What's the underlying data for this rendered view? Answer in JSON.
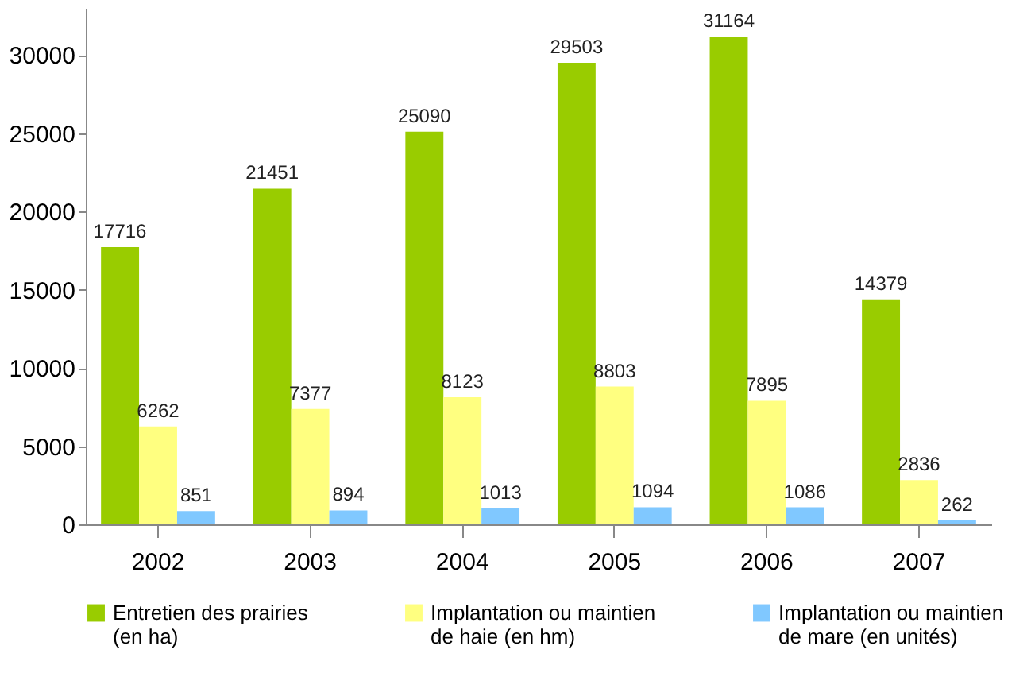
{
  "chart_data": {
    "type": "bar",
    "categories": [
      "2002",
      "2003",
      "2004",
      "2005",
      "2006",
      "2007"
    ],
    "series": [
      {
        "name": "Entretien des prairies (en ha)",
        "color": "#99cc00",
        "values": [
          17716,
          21451,
          25090,
          29503,
          31164,
          14379
        ]
      },
      {
        "name": "Implantation ou maintien de haie (en hm)",
        "color": "#ffff80",
        "values": [
          6262,
          7377,
          8123,
          8803,
          7895,
          2836
        ]
      },
      {
        "name": "Implantation ou maintien de mare (en unités)",
        "color": "#80c8ff",
        "values": [
          851,
          894,
          1013,
          1094,
          1086,
          262
        ]
      }
    ],
    "ylim": [
      0,
      33000
    ],
    "yticks": [
      0,
      5000,
      10000,
      15000,
      20000,
      25000,
      30000
    ],
    "grid": false,
    "legend": "bottom",
    "data_labels": true
  }
}
